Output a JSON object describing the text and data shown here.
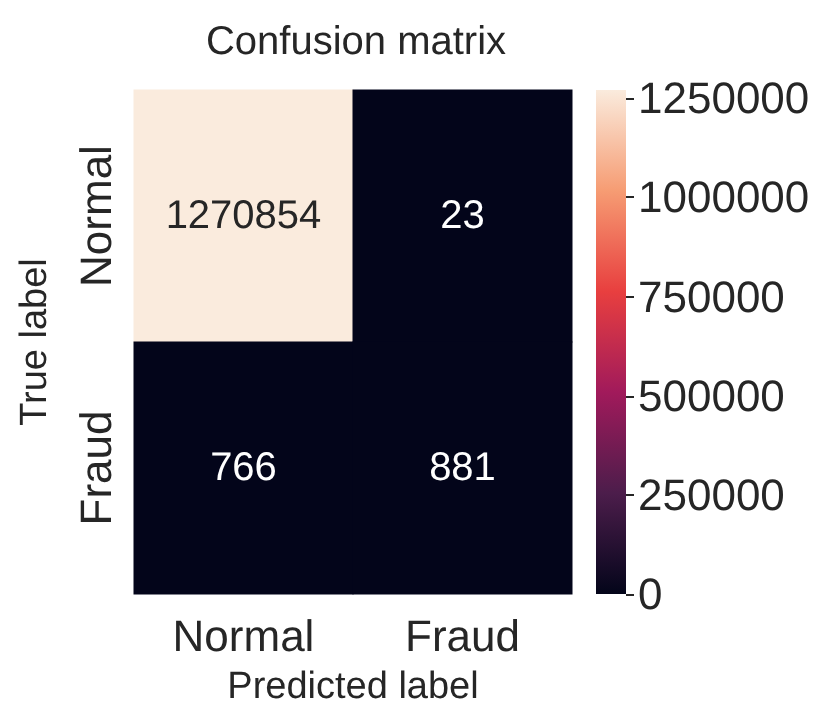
{
  "chart_data": {
    "type": "heatmap",
    "title": "Confusion matrix",
    "xlabel": "Predicted label",
    "ylabel": "True label",
    "categories": [
      "Normal",
      "Fraud"
    ],
    "y_categories": [
      "Normal",
      "Fraud"
    ],
    "cells": [
      [
        1270854,
        23
      ],
      [
        766,
        881
      ]
    ],
    "clim": [
      0,
      1270854
    ],
    "cticks": [
      0,
      250000,
      500000,
      750000,
      1000000,
      1250000
    ],
    "data_labels": true
  }
}
